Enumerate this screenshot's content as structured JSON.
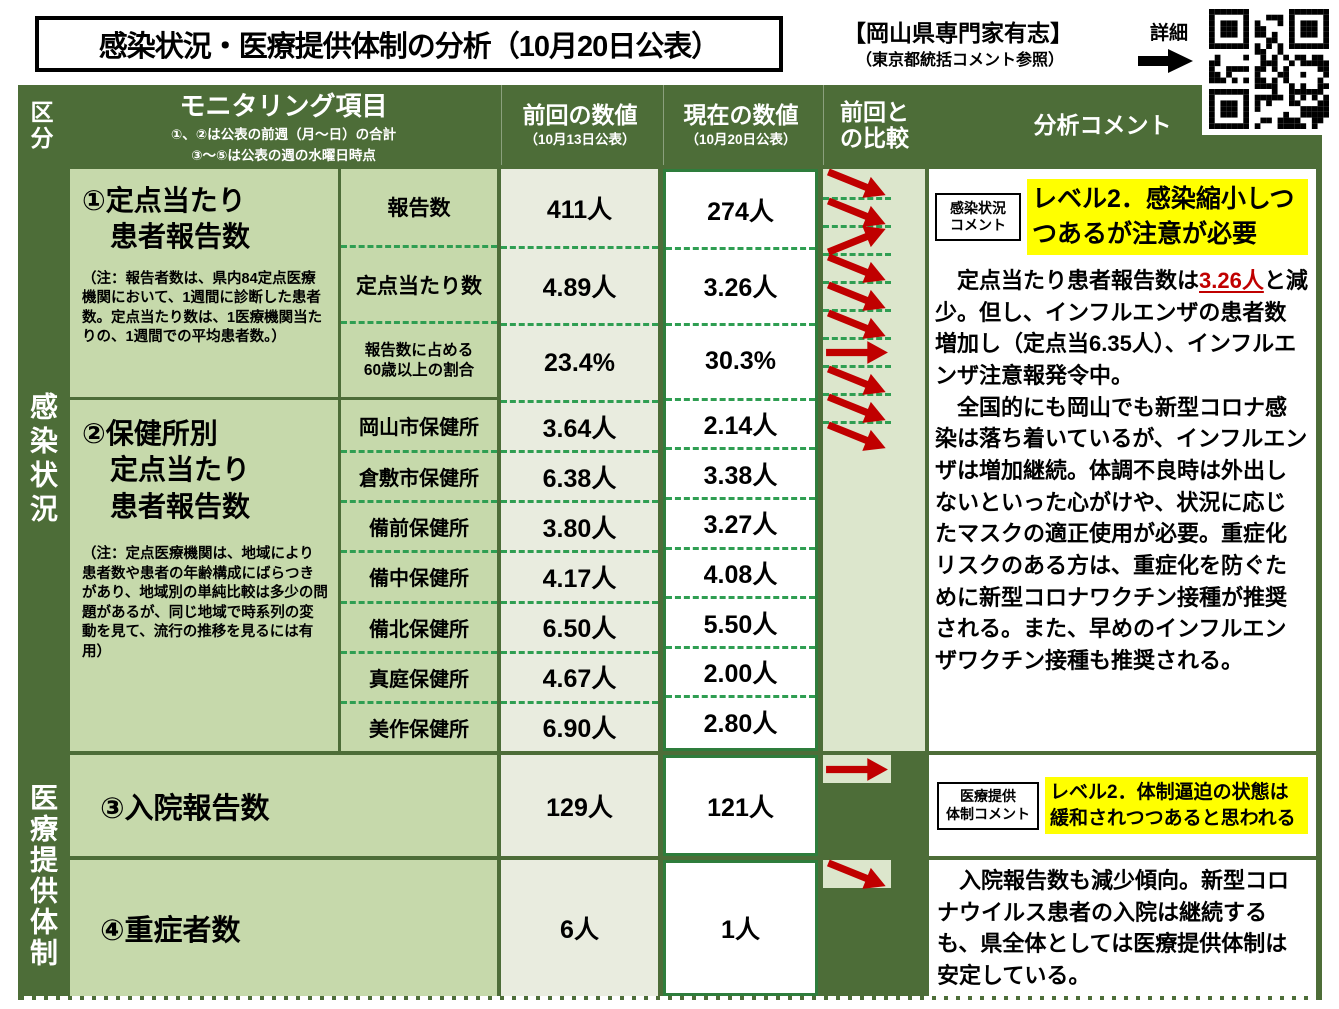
{
  "header": {
    "title": "感染状況・医療提供体制の分析（10月20日公表）",
    "org": "【岡山県専門家有志】",
    "org_note": "（東京都統括コメント参照）",
    "detail": "詳細"
  },
  "columns": {
    "kubun": "区\n分",
    "monitoring": "モニタリング項目",
    "monitoring_note1": "①、②は公表の前週（月～日）の合計",
    "monitoring_note2": "③～⑤は公表の週の水曜日時点",
    "prev": "前回の数値",
    "prev_sub": "（10月13日公表）",
    "curr": "現在の数値",
    "curr_sub": "（10月20日公表）",
    "compare": "前回と\nの比較",
    "comment": "分析コメント"
  },
  "kubun": {
    "infection": "感染状況",
    "medical": "医療提供体制"
  },
  "group1": {
    "title": "①定点当たり\n　患者報告数",
    "note": "（注：報告者数は、県内84定点医療機関において、1週間に診断した患者数。定点当たり数は、1医療機関当たりの、1週間での平均患者数。）",
    "rows": [
      {
        "label": "報告数",
        "prev": "411人",
        "curr": "274人",
        "trend": "down"
      },
      {
        "label": "定点当たり数",
        "prev": "4.89人",
        "curr": "3.26人",
        "trend": "down"
      },
      {
        "label": "報告数に占める\n60歳以上の割合",
        "prev": "23.4%",
        "curr": "30.3%",
        "trend": "up"
      }
    ]
  },
  "group2": {
    "title": "②保健所別\n　定点当たり\n　患者報告数",
    "note": "（注：定点医療機関は、地域により患者数や患者の年齢構成にばらつきがあり、地域別の単純比較は多少の問題があるが、同じ地域で時系列の変動を見て、流行の推移を見るには有用）",
    "rows": [
      {
        "label": "岡山市保健所",
        "prev": "3.64人",
        "curr": "2.14人",
        "trend": "down"
      },
      {
        "label": "倉敷市保健所",
        "prev": "6.38人",
        "curr": "3.38人",
        "trend": "down"
      },
      {
        "label": "備前保健所",
        "prev": "3.80人",
        "curr": "3.27人",
        "trend": "down"
      },
      {
        "label": "備中保健所",
        "prev": "4.17人",
        "curr": "4.08人",
        "trend": "flat"
      },
      {
        "label": "備北保健所",
        "prev": "6.50人",
        "curr": "5.50人",
        "trend": "down"
      },
      {
        "label": "真庭保健所",
        "prev": "4.67人",
        "curr": "2.00人",
        "trend": "down"
      },
      {
        "label": "美作保健所",
        "prev": "6.90人",
        "curr": "2.80人",
        "trend": "down"
      }
    ]
  },
  "row3": {
    "title": "③入院報告数",
    "prev": "129人",
    "curr": "121人",
    "trend": "flat"
  },
  "row4": {
    "title": "④重症者数",
    "prev": "6人",
    "curr": "1人",
    "trend": "down"
  },
  "comments": {
    "infection_badge": "感染状況\nコメント",
    "infection_level": "レベル2．感染縮小しつつあるが注意が必要",
    "infection_p1a": "　定点当たり患者報告数は",
    "infection_p1_red": "3.26人",
    "infection_p1b": "と減少。但し、インフルエンザの患者数増加し（定点当6.35人）、インフルエンザ注意報発令中。",
    "infection_p2": "　全国的にも岡山でも新型コロナ感染は落ち着いているが、インフルエンザは増加継続。体調不良時は外出しないといった心がけや、状況に応じたマスクの適正使用が必要。重症化リスクのある方は、重症化を防ぐために新型コロナワクチン接種が推奨される。また、早めのインフルエンザワクチン接種も推奨される。",
    "medical_badge": "医療提供\n体制コメント",
    "medical_level": "レベル2．体制逼迫の状態は緩和されつつあると思われる",
    "medical_text": "　入院報告数も減少傾向。新型コロナウイルス患者の入院は継続するも、県全体としては医療提供体制は安定している。"
  },
  "colors": {
    "dark_green": "#4d6d38",
    "light_green": "#c6d9ab",
    "yellow": "#ffff00",
    "arrow_red": "#c00000",
    "dash": "#2f9e52",
    "curr_border": "#2e7d3c"
  }
}
